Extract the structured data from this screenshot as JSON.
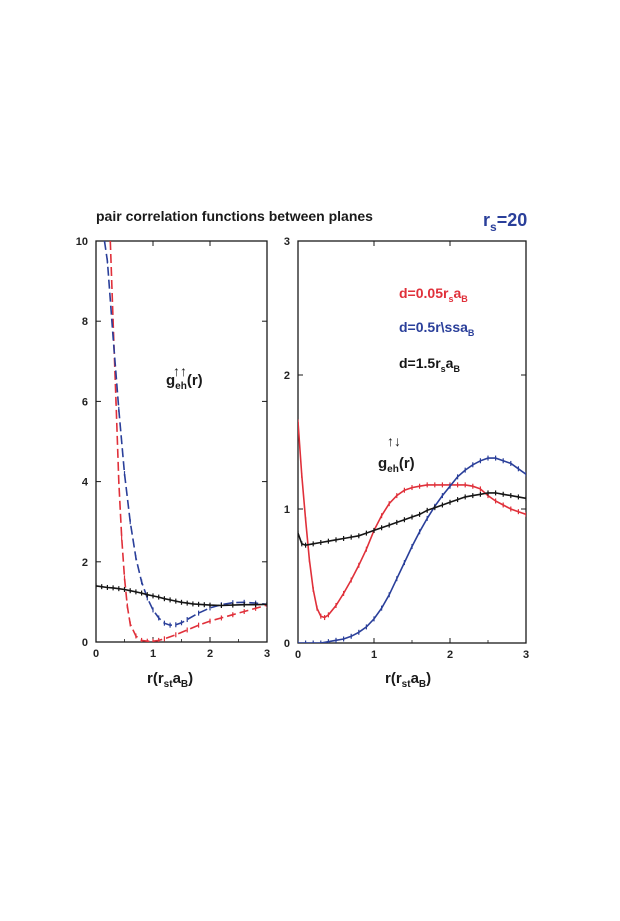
{
  "figure": {
    "title": "pair correlation functions between planes",
    "rs_label": {
      "main": "r",
      "sub": "s",
      "tail": "=20",
      "color": "#2a3f9a"
    }
  },
  "chart_data": [
    {
      "type": "line",
      "panel": "left",
      "annotation": {
        "main": "g",
        "sub": "eh",
        "tail": "(r)",
        "arrows": "↑↑"
      },
      "xlabel": {
        "main": "r(r",
        "sub": "st",
        "mid": "a",
        "sub2": "B",
        "tail": ")"
      },
      "ylabel": "",
      "xlim": [
        0,
        3
      ],
      "ylim": [
        0,
        10
      ],
      "xticks": [
        0,
        1,
        2,
        3
      ],
      "yticks": [
        0,
        2,
        4,
        6,
        8,
        10
      ],
      "grid": false,
      "series": [
        {
          "color": "#e0303a",
          "dashed": true,
          "x": [
            0.25,
            0.3,
            0.35,
            0.4,
            0.45,
            0.5,
            0.55,
            0.6,
            0.7,
            0.8,
            0.9,
            1.0,
            1.1,
            1.2,
            1.4,
            1.6,
            1.8,
            2.0,
            2.2,
            2.4,
            2.6,
            2.8,
            3.0
          ],
          "y": [
            10,
            8.0,
            6.0,
            4.0,
            2.6,
            1.6,
            0.9,
            0.45,
            0.15,
            0.04,
            0.02,
            0.02,
            0.04,
            0.08,
            0.18,
            0.3,
            0.42,
            0.52,
            0.6,
            0.68,
            0.76,
            0.84,
            0.92
          ]
        },
        {
          "color": "#2a3f9a",
          "dashed": true,
          "x": [
            0.15,
            0.2,
            0.3,
            0.4,
            0.5,
            0.6,
            0.7,
            0.8,
            0.9,
            1.0,
            1.1,
            1.2,
            1.3,
            1.4,
            1.5,
            1.6,
            1.8,
            2.0,
            2.2,
            2.4,
            2.6,
            2.8,
            3.0
          ],
          "y": [
            10,
            9.5,
            7.6,
            5.8,
            4.2,
            3.0,
            2.1,
            1.5,
            1.1,
            0.8,
            0.6,
            0.47,
            0.42,
            0.43,
            0.48,
            0.56,
            0.72,
            0.85,
            0.93,
            0.98,
            0.99,
            0.97,
            0.94
          ]
        },
        {
          "color": "#151515",
          "dashed": false,
          "x": [
            0.0,
            0.1,
            0.2,
            0.3,
            0.4,
            0.5,
            0.6,
            0.7,
            0.8,
            0.9,
            1.0,
            1.1,
            1.2,
            1.3,
            1.4,
            1.5,
            1.6,
            1.7,
            1.8,
            1.9,
            2.0,
            2.2,
            2.4,
            2.6,
            2.8,
            3.0
          ],
          "y": [
            1.4,
            1.38,
            1.36,
            1.35,
            1.33,
            1.31,
            1.28,
            1.25,
            1.22,
            1.18,
            1.15,
            1.12,
            1.08,
            1.05,
            1.02,
            0.99,
            0.97,
            0.95,
            0.94,
            0.93,
            0.92,
            0.91,
            0.92,
            0.93,
            0.93,
            0.94
          ]
        }
      ]
    },
    {
      "type": "line",
      "panel": "right",
      "annotation": {
        "main": "g",
        "sub": "eh",
        "tail": "(r)",
        "arrows": "↑↓"
      },
      "xlabel": {
        "main": "r(r",
        "sub": "st",
        "mid": "a",
        "sub2": "B",
        "tail": ")"
      },
      "ylabel": "",
      "xlim": [
        0,
        3
      ],
      "ylim": [
        0,
        3
      ],
      "xticks": [
        0,
        1,
        2,
        3
      ],
      "yticks": [
        0,
        1,
        2,
        3
      ],
      "grid": false,
      "legend": [
        {
          "main": "d=0.05r",
          "sub": "s",
          "mid": "a",
          "sub2": "B",
          "color": "#e0303a"
        },
        {
          "main": "d=0.5r\\ssa",
          "sub": "",
          "mid": "",
          "sub2": "B",
          "color": "#2a3f9a"
        },
        {
          "main": "d=1.5r",
          "sub": "s",
          "mid": "a",
          "sub2": "B",
          "color": "#151515"
        }
      ],
      "series": [
        {
          "color": "#e0303a",
          "dashed": false,
          "x": [
            0.0,
            0.05,
            0.1,
            0.15,
            0.2,
            0.25,
            0.3,
            0.35,
            0.4,
            0.5,
            0.6,
            0.7,
            0.8,
            0.9,
            1.0,
            1.1,
            1.2,
            1.3,
            1.4,
            1.5,
            1.6,
            1.7,
            1.8,
            1.9,
            2.0,
            2.1,
            2.2,
            2.3,
            2.4,
            2.5,
            2.6,
            2.7,
            2.8,
            2.9,
            3.0
          ],
          "y": [
            1.65,
            1.25,
            0.92,
            0.62,
            0.4,
            0.26,
            0.2,
            0.19,
            0.21,
            0.28,
            0.37,
            0.47,
            0.58,
            0.7,
            0.84,
            0.95,
            1.04,
            1.1,
            1.14,
            1.16,
            1.17,
            1.18,
            1.18,
            1.18,
            1.18,
            1.18,
            1.18,
            1.17,
            1.15,
            1.1,
            1.06,
            1.03,
            1.0,
            0.98,
            0.96
          ]
        },
        {
          "color": "#2a3f9a",
          "dashed": false,
          "x": [
            0.0,
            0.1,
            0.2,
            0.3,
            0.4,
            0.5,
            0.6,
            0.7,
            0.8,
            0.9,
            1.0,
            1.1,
            1.2,
            1.3,
            1.4,
            1.5,
            1.6,
            1.7,
            1.8,
            1.9,
            2.0,
            2.1,
            2.2,
            2.3,
            2.4,
            2.5,
            2.6,
            2.7,
            2.8,
            2.9,
            3.0
          ],
          "y": [
            0.0,
            0.0,
            0.0,
            0.0,
            0.01,
            0.02,
            0.03,
            0.05,
            0.08,
            0.12,
            0.18,
            0.26,
            0.36,
            0.48,
            0.6,
            0.72,
            0.83,
            0.93,
            1.02,
            1.1,
            1.17,
            1.24,
            1.29,
            1.33,
            1.36,
            1.38,
            1.38,
            1.36,
            1.34,
            1.3,
            1.26
          ]
        },
        {
          "color": "#151515",
          "dashed": false,
          "x": [
            0.0,
            0.05,
            0.1,
            0.2,
            0.3,
            0.4,
            0.5,
            0.6,
            0.7,
            0.8,
            0.9,
            1.0,
            1.1,
            1.2,
            1.3,
            1.4,
            1.5,
            1.6,
            1.7,
            1.8,
            1.9,
            2.0,
            2.1,
            2.2,
            2.3,
            2.4,
            2.5,
            2.6,
            2.7,
            2.8,
            2.9,
            3.0
          ],
          "y": [
            0.82,
            0.74,
            0.73,
            0.74,
            0.75,
            0.76,
            0.77,
            0.78,
            0.79,
            0.8,
            0.82,
            0.84,
            0.86,
            0.88,
            0.9,
            0.92,
            0.94,
            0.96,
            0.99,
            1.01,
            1.03,
            1.05,
            1.07,
            1.09,
            1.1,
            1.11,
            1.12,
            1.12,
            1.11,
            1.1,
            1.09,
            1.08
          ]
        }
      ]
    }
  ]
}
